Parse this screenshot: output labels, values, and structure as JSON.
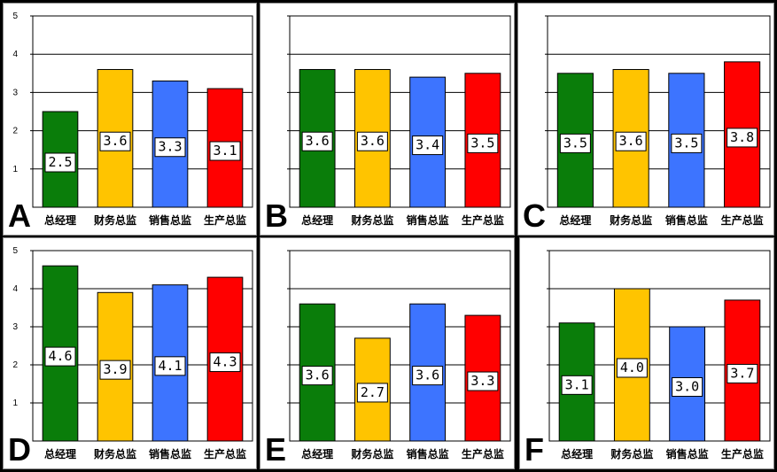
{
  "chart_data": [
    {
      "panel": "A",
      "type": "bar",
      "categories": [
        "总经理",
        "财务总监",
        "销售总监",
        "生产总监"
      ],
      "values": [
        2.5,
        3.6,
        3.3,
        3.1
      ],
      "labels": [
        "2.5",
        "3.6",
        "3.3",
        "3.1"
      ],
      "ylim": [
        0,
        5
      ],
      "yticks": [
        "1",
        "2",
        "3",
        "4",
        "5"
      ],
      "grid": true
    },
    {
      "panel": "B",
      "type": "bar",
      "categories": [
        "总经理",
        "财务总监",
        "销售总监",
        "生产总监"
      ],
      "values": [
        3.6,
        3.6,
        3.4,
        3.5
      ],
      "labels": [
        "3.6",
        "3.6",
        "3.4",
        "3.5"
      ],
      "ylim": [
        0,
        5
      ],
      "yticks": [],
      "grid": true
    },
    {
      "panel": "C",
      "type": "bar",
      "categories": [
        "总经理",
        "财务总监",
        "销售总监",
        "生产总监"
      ],
      "values": [
        3.5,
        3.6,
        3.5,
        3.8
      ],
      "labels": [
        "3.5",
        "3.6",
        "3.5",
        "3.8"
      ],
      "ylim": [
        0,
        5
      ],
      "yticks": [],
      "grid": true
    },
    {
      "panel": "D",
      "type": "bar",
      "categories": [
        "总经理",
        "财务总监",
        "销售总监",
        "生产总监"
      ],
      "values": [
        4.6,
        3.9,
        4.1,
        4.3
      ],
      "labels": [
        "4.6",
        "3.9",
        "4.1",
        "4.3"
      ],
      "ylim": [
        0,
        5
      ],
      "yticks": [
        "1",
        "2",
        "3",
        "4",
        "5"
      ],
      "grid": true
    },
    {
      "panel": "E",
      "type": "bar",
      "categories": [
        "总经理",
        "财务总监",
        "销售总监",
        "生产总监"
      ],
      "values": [
        3.6,
        2.7,
        3.6,
        3.3
      ],
      "labels": [
        "3.6",
        "2.7",
        "3.6",
        "3.3"
      ],
      "ylim": [
        0,
        5
      ],
      "yticks": [],
      "grid": true
    },
    {
      "panel": "F",
      "type": "bar",
      "categories": [
        "总经理",
        "财务总监",
        "销售总监",
        "生产总监"
      ],
      "values": [
        3.1,
        4.0,
        3.0,
        3.7
      ],
      "labels": [
        "3.1",
        "4.0",
        "3.0",
        "3.7"
      ],
      "ylim": [
        0,
        5
      ],
      "yticks": [],
      "grid": true
    }
  ],
  "colors": [
    "#0a7d0a",
    "#ffc400",
    "#3d74ff",
    "#ff0000"
  ]
}
